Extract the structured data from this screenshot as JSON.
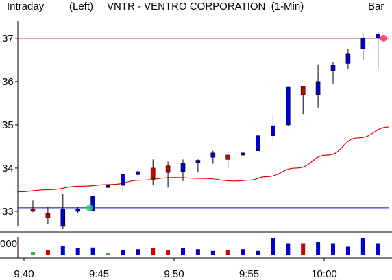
{
  "header": {
    "mode": "Intraday",
    "side": "(Left)",
    "title": "VNTR - VENTRO CORPORATION  (1-Min)",
    "style": "Bar"
  },
  "colors": {
    "up": "#0000cc",
    "down": "#cc0000",
    "ma": "#dd0000",
    "ref_high": "#cc0000",
    "ref_low": "#0000cc",
    "dot_high": "#ff3355",
    "dot_low": "#33cc66",
    "vol_flat": "#33bb33"
  },
  "chart_data": {
    "type": "candlestick",
    "title": "VNTR - VENTRO CORPORATION  (1-Min)",
    "ylim": [
      32.65,
      37.22
    ],
    "yticks": [
      {
        "value": 37,
        "label": "37"
      },
      {
        "value": 36,
        "label": "36"
      },
      {
        "value": 35,
        "label": "35"
      },
      {
        "value": 34,
        "label": "34"
      },
      {
        "value": 33,
        "label": "33"
      }
    ],
    "xticks": [
      {
        "index": 0,
        "label": "9:40"
      },
      {
        "index": 5,
        "label": "9:45"
      },
      {
        "index": 10,
        "label": "9:50"
      },
      {
        "index": 15,
        "label": "9:55"
      },
      {
        "index": 20,
        "label": "10:00"
      }
    ],
    "volume_label": "000",
    "reference_lines": [
      37.0,
      33.08
    ],
    "candles": [
      {
        "t": "9:40",
        "open": 33.05,
        "high": 33.25,
        "low": 32.98,
        "close": 33.0,
        "vol": 0.2
      },
      {
        "t": "9:41",
        "open": 32.95,
        "high": 33.1,
        "low": 32.7,
        "close": 32.85,
        "vol": 0.3
      },
      {
        "t": "9:42",
        "open": 32.65,
        "high": 33.4,
        "low": 32.6,
        "close": 33.05,
        "vol": 0.55
      },
      {
        "t": "9:43",
        "open": 33.0,
        "high": 33.1,
        "low": 32.95,
        "close": 33.05,
        "vol": 0.4
      },
      {
        "t": "9:44",
        "open": 33.02,
        "high": 33.5,
        "low": 32.98,
        "close": 33.35,
        "vol": 0.45
      },
      {
        "t": "9:45",
        "open": 33.55,
        "high": 33.65,
        "low": 33.5,
        "close": 33.6,
        "vol": 0.15
      },
      {
        "t": "9:46",
        "open": 33.6,
        "high": 33.95,
        "low": 33.45,
        "close": 33.85,
        "vol": 0.3
      },
      {
        "t": "9:47",
        "open": 33.85,
        "high": 33.95,
        "low": 33.8,
        "close": 33.92,
        "vol": 0.35
      },
      {
        "t": "9:48",
        "open": 34.0,
        "high": 34.2,
        "low": 33.6,
        "close": 33.75,
        "vol": 0.4
      },
      {
        "t": "9:49",
        "open": 34.05,
        "high": 34.15,
        "low": 33.55,
        "close": 33.9,
        "vol": 0.3
      },
      {
        "t": "9:50",
        "open": 33.92,
        "high": 34.2,
        "low": 33.7,
        "close": 34.12,
        "vol": 0.4
      },
      {
        "t": "9:51",
        "open": 34.12,
        "high": 34.2,
        "low": 33.9,
        "close": 34.18,
        "vol": 0.35
      },
      {
        "t": "9:52",
        "open": 34.25,
        "high": 34.4,
        "low": 34.1,
        "close": 34.35,
        "vol": 0.25
      },
      {
        "t": "9:53",
        "open": 34.3,
        "high": 34.38,
        "low": 34.0,
        "close": 34.2,
        "vol": 0.3
      },
      {
        "t": "9:54",
        "open": 34.3,
        "high": 34.38,
        "low": 34.25,
        "close": 34.35,
        "vol": 0.35
      },
      {
        "t": "9:55",
        "open": 34.4,
        "high": 34.8,
        "low": 34.3,
        "close": 34.75,
        "vol": 0.25
      },
      {
        "t": "9:56",
        "open": 34.75,
        "high": 35.25,
        "low": 34.6,
        "close": 34.98,
        "vol": 1.0
      },
      {
        "t": "9:57",
        "open": 35.0,
        "high": 35.88,
        "low": 34.98,
        "close": 35.87,
        "vol": 0.7
      },
      {
        "t": "9:58",
        "open": 35.88,
        "high": 35.9,
        "low": 35.25,
        "close": 35.7,
        "vol": 0.7
      },
      {
        "t": "9:59",
        "open": 35.7,
        "high": 36.4,
        "low": 35.4,
        "close": 36.0,
        "vol": 0.8
      },
      {
        "t": "10:00",
        "open": 36.25,
        "high": 36.45,
        "low": 35.95,
        "close": 36.38,
        "vol": 0.7
      },
      {
        "t": "10:01",
        "open": 36.42,
        "high": 36.75,
        "low": 36.3,
        "close": 36.65,
        "vol": 0.5
      },
      {
        "t": "10:02",
        "open": 36.75,
        "high": 37.1,
        "low": 36.5,
        "close": 37.0,
        "vol": 1.0
      },
      {
        "t": "10:03",
        "open": 37.0,
        "high": 37.15,
        "low": 36.3,
        "close": 37.1,
        "vol": 0.7
      }
    ],
    "ma": [
      [
        0,
        33.45
      ],
      [
        2,
        33.5
      ],
      [
        4,
        33.58
      ],
      [
        6,
        33.62
      ],
      [
        8,
        33.72
      ],
      [
        10,
        33.78
      ],
      [
        12,
        33.76
      ],
      [
        14,
        33.7
      ],
      [
        15,
        33.72
      ],
      [
        16,
        33.8
      ],
      [
        18,
        34.0
      ],
      [
        20,
        34.3
      ],
      [
        22,
        34.7
      ],
      [
        24,
        34.95
      ]
    ]
  }
}
